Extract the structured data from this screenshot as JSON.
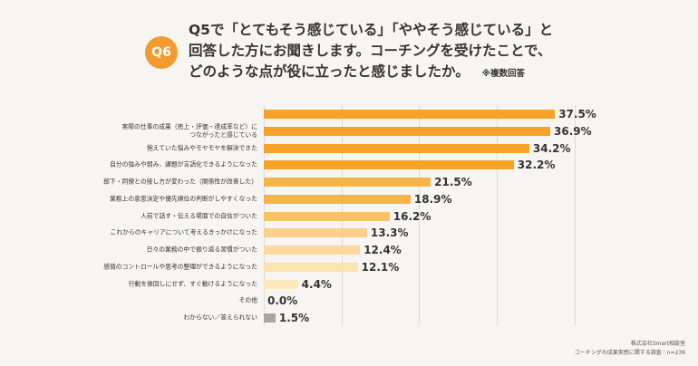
{
  "chart_data": {
    "type": "barh",
    "badge": "Q6",
    "title": [
      "Q5で「とてもそう感じている」「ややそう感じている」と",
      "回答した方にお聞きします。コーチングを受けたことで、",
      "どのような点が役に立ったと感じましたか。"
    ],
    "note": "※複数回答",
    "categories": [
      null,
      "実際の仕事の成果（売上・評価・達成率など）に\nつながったと感じている",
      "抱えていた悩みやモヤモヤを解決できた",
      "自分の強みや弱み、課題が言語化できるようになった",
      "部下・同僚との接し方が変わった（関係性が改善した）",
      "業務上の意思決定や優先順位の判断がしやすくなった",
      "人前で話す・伝える場面での自信がついた",
      "これからのキャリアについて考えるきっかけになった",
      "日々の業務の中で振り返る習慣がついた",
      "感情のコントロールや思考の整理ができるようになった",
      "行動を後回しにせず、すぐ動けるようになった",
      "その他",
      "わからない／答えられない"
    ],
    "values": [
      37.5,
      36.9,
      34.2,
      32.2,
      21.5,
      18.9,
      16.2,
      13.3,
      12.4,
      12.1,
      4.4,
      0.0,
      1.5
    ],
    "value_labels": [
      "37.5%",
      "36.9%",
      "34.2%",
      "32.2%",
      "21.5%",
      "18.9%",
      "16.2%",
      "13.3%",
      "12.4%",
      "12.1%",
      "4.4%",
      "0.0%",
      "1.5%"
    ],
    "colors": [
      "#f4a228",
      "#f4a228",
      "#f4a228",
      "#f4a228",
      "#f6b445",
      "#f6b445",
      "#f8c266",
      "#fad08a",
      "#fbd99c",
      "#fce2ae",
      "#fde8bc",
      "#fde8bc",
      "#a9a69d"
    ],
    "xlim": [
      0,
      40
    ],
    "xticks": [
      0,
      10,
      20,
      30,
      40
    ],
    "grid": true,
    "source": [
      "株式会社Smart相談室",
      "コーチングの成果実感に関する調査｜n=239"
    ]
  }
}
